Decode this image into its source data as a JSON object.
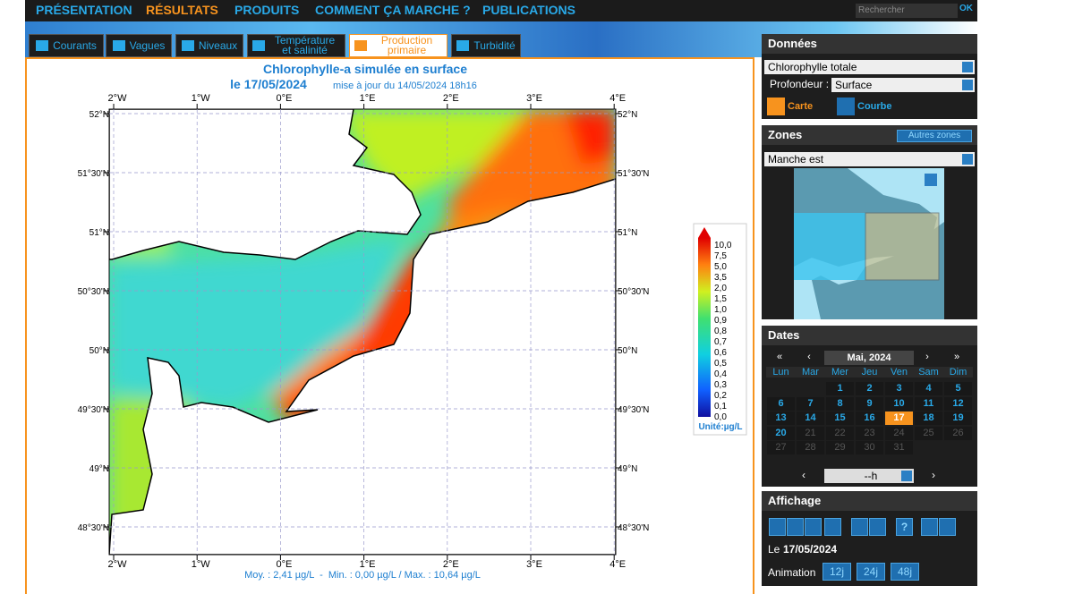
{
  "nav": {
    "items": [
      "PRÉSENTATION",
      "RÉSULTATS",
      "PRODUITS",
      "COMMENT ÇA MARCHE ?",
      "PUBLICATIONS"
    ],
    "active": 1,
    "search_placeholder": "Rechercher",
    "search_button": "OK"
  },
  "tabs": {
    "items": [
      "Courants",
      "Vagues",
      "Niveaux",
      "Température et salinité",
      "Production primaire",
      "Turbidité"
    ],
    "active": 4
  },
  "map": {
    "title": "Chlorophylle-a simulée en surface",
    "date": "le 17/05/2024",
    "update": "mise à jour du 14/05/2024 18h16",
    "x_labels": [
      "2°W",
      "1°W",
      "0°E",
      "1°E",
      "2°E",
      "3°E",
      "4°E"
    ],
    "y_labels": [
      "52°N",
      "51°30'N",
      "51°N",
      "50°30'N",
      "50°N",
      "49°30'N",
      "49°N",
      "48°30'N"
    ],
    "colorbar_labels": [
      "10,0",
      "7,5",
      "5,0",
      "3,5",
      "2,0",
      "1,5",
      "1,0",
      "0,9",
      "0,8",
      "0,7",
      "0,6",
      "0,5",
      "0,4",
      "0,3",
      "0,2",
      "0,1",
      "0,0"
    ],
    "unit": "Unité:µg/L",
    "stats": "Moy. : 2,41 µg/L  -  Min. : 0,00 µg/L / Max. : 10,64 µg/L"
  },
  "sidebar": {
    "data": {
      "title": "Données",
      "variable": "Chlorophylle totale",
      "depth_label": "Profondeur :",
      "depth": "Surface",
      "map_button": "Carte",
      "curve_button": "Courbe"
    },
    "zones": {
      "title": "Zones",
      "other": "Autres zones",
      "zone": "Manche est"
    },
    "dates": {
      "title": "Dates",
      "month": "Mai, 2024",
      "nav": [
        "«",
        "‹",
        "›",
        "»"
      ],
      "weekdays": [
        "Lun",
        "Mar",
        "Mer",
        "Jeu",
        "Ven",
        "Sam",
        "Dim"
      ],
      "days": [
        1,
        2,
        3,
        4,
        5,
        6,
        7,
        8,
        9,
        10,
        11,
        12,
        13,
        14,
        15,
        16,
        17,
        18,
        19,
        20,
        21,
        22,
        23,
        24,
        25,
        26,
        27,
        28,
        29,
        30,
        31
      ],
      "selected": 17,
      "available_until": 20,
      "hour": "--h",
      "hour_nav": [
        "‹",
        "›"
      ]
    },
    "display": {
      "title": "Affichage",
      "help": "?",
      "date_prefix": "Le",
      "date": "17/05/2024",
      "animation": "Animation",
      "animation_buttons": [
        "12j",
        "24j",
        "48j"
      ]
    }
  }
}
